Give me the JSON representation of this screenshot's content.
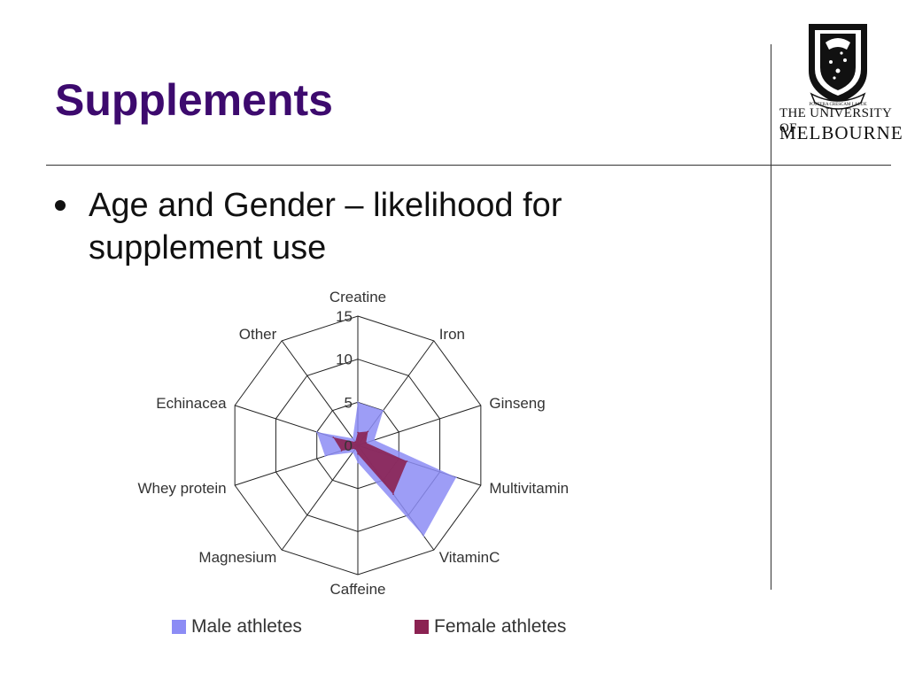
{
  "slide": {
    "title": "Supplements",
    "bullet": "Age and Gender – likelihood for supplement use"
  },
  "logo": {
    "motto": "POSTERA CRESCAM LAUDE",
    "line1": "THE UNIVERSITY OF",
    "line2": "MELBOURNE"
  },
  "colors": {
    "title": "#3d0a6e",
    "male": "#8c8cf5",
    "female": "#8b2252"
  },
  "chart_data": {
    "type": "radar",
    "title": "",
    "axes": [
      "Creatine",
      "Iron",
      "Ginseng",
      "Multivitamin",
      "VitaminC",
      "Caffeine",
      "Magnesium",
      "Whey protein",
      "Echinacea",
      "Other"
    ],
    "range": [
      0,
      15
    ],
    "ticks": [
      0,
      5,
      10,
      15
    ],
    "series": [
      {
        "name": "Male athletes",
        "values": [
          5,
          5,
          2,
          12,
          13,
          2,
          1,
          4,
          5,
          1
        ]
      },
      {
        "name": "Female athletes",
        "values": [
          1.5,
          2,
          1,
          6,
          7,
          1,
          0.5,
          2,
          3,
          0.5
        ]
      }
    ],
    "legend": "bottom"
  }
}
